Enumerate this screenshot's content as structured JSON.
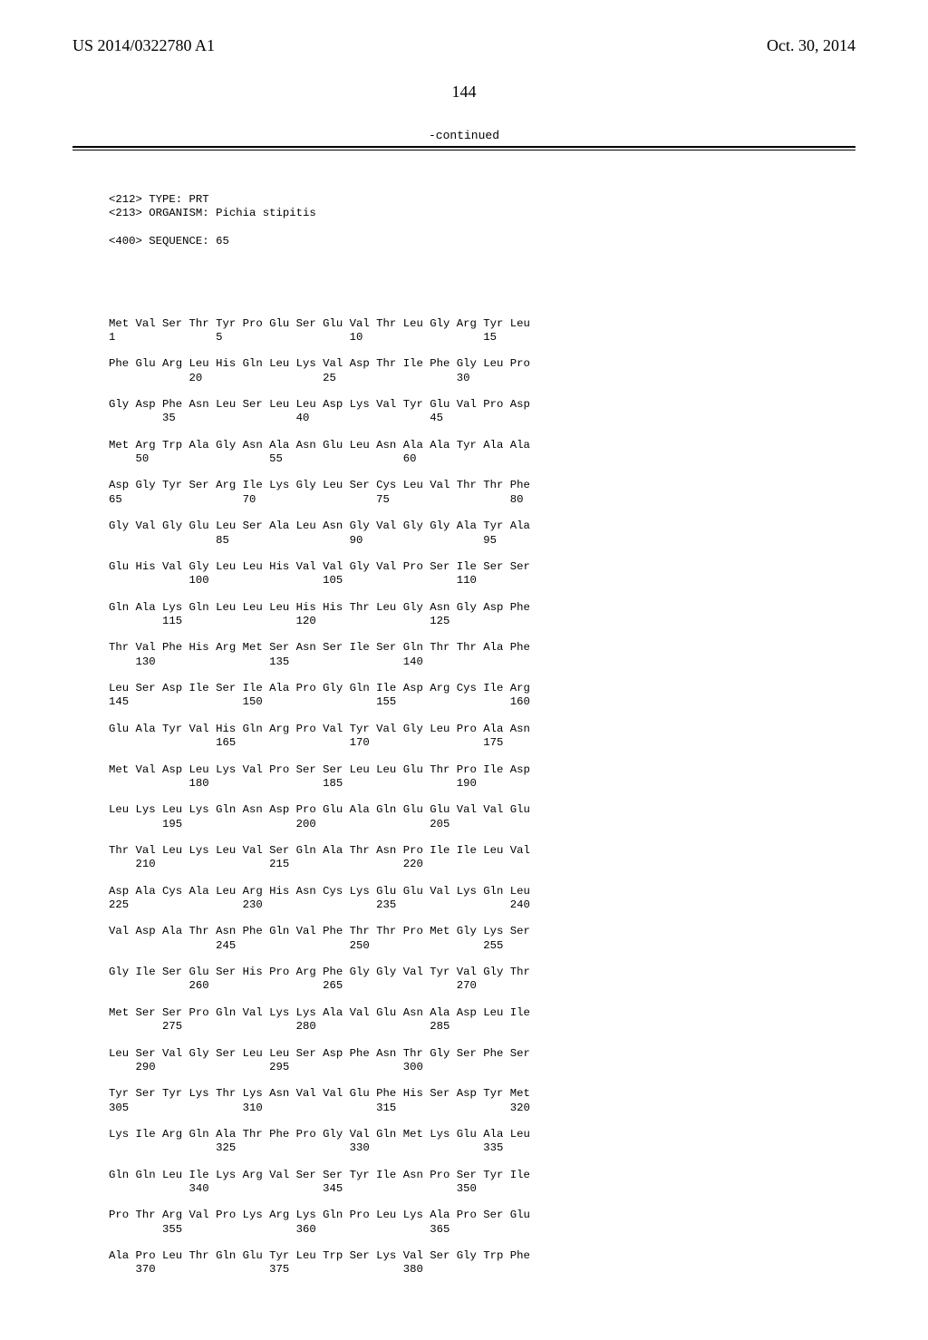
{
  "header": {
    "pub_number": "US 2014/0322780 A1",
    "pub_date": "Oct. 30, 2014"
  },
  "page_number": "144",
  "continued_label": "-continued",
  "meta_lines": [
    "<212> TYPE: PRT",
    "<213> ORGANISM: Pichia stipitis",
    "",
    "<400> SEQUENCE: 65"
  ],
  "sequence_rows": [
    {
      "aa": "Met Val Ser Thr Tyr Pro Glu Ser Glu Val Thr Leu Gly Arg Tyr Leu",
      "nm": "1               5                   10                  15"
    },
    {
      "aa": "Phe Glu Arg Leu His Gln Leu Lys Val Asp Thr Ile Phe Gly Leu Pro",
      "nm": "            20                  25                  30"
    },
    {
      "aa": "Gly Asp Phe Asn Leu Ser Leu Leu Asp Lys Val Tyr Glu Val Pro Asp",
      "nm": "        35                  40                  45"
    },
    {
      "aa": "Met Arg Trp Ala Gly Asn Ala Asn Glu Leu Asn Ala Ala Tyr Ala Ala",
      "nm": "    50                  55                  60"
    },
    {
      "aa": "Asp Gly Tyr Ser Arg Ile Lys Gly Leu Ser Cys Leu Val Thr Thr Phe",
      "nm": "65                  70                  75                  80"
    },
    {
      "aa": "Gly Val Gly Glu Leu Ser Ala Leu Asn Gly Val Gly Gly Ala Tyr Ala",
      "nm": "                85                  90                  95"
    },
    {
      "aa": "Glu His Val Gly Leu Leu His Val Val Gly Val Pro Ser Ile Ser Ser",
      "nm": "            100                 105                 110"
    },
    {
      "aa": "Gln Ala Lys Gln Leu Leu Leu His His Thr Leu Gly Asn Gly Asp Phe",
      "nm": "        115                 120                 125"
    },
    {
      "aa": "Thr Val Phe His Arg Met Ser Asn Ser Ile Ser Gln Thr Thr Ala Phe",
      "nm": "    130                 135                 140"
    },
    {
      "aa": "Leu Ser Asp Ile Ser Ile Ala Pro Gly Gln Ile Asp Arg Cys Ile Arg",
      "nm": "145                 150                 155                 160"
    },
    {
      "aa": "Glu Ala Tyr Val His Gln Arg Pro Val Tyr Val Gly Leu Pro Ala Asn",
      "nm": "                165                 170                 175"
    },
    {
      "aa": "Met Val Asp Leu Lys Val Pro Ser Ser Leu Leu Glu Thr Pro Ile Asp",
      "nm": "            180                 185                 190"
    },
    {
      "aa": "Leu Lys Leu Lys Gln Asn Asp Pro Glu Ala Gln Glu Glu Val Val Glu",
      "nm": "        195                 200                 205"
    },
    {
      "aa": "Thr Val Leu Lys Leu Val Ser Gln Ala Thr Asn Pro Ile Ile Leu Val",
      "nm": "    210                 215                 220"
    },
    {
      "aa": "Asp Ala Cys Ala Leu Arg His Asn Cys Lys Glu Glu Val Lys Gln Leu",
      "nm": "225                 230                 235                 240"
    },
    {
      "aa": "Val Asp Ala Thr Asn Phe Gln Val Phe Thr Thr Pro Met Gly Lys Ser",
      "nm": "                245                 250                 255"
    },
    {
      "aa": "Gly Ile Ser Glu Ser His Pro Arg Phe Gly Gly Val Tyr Val Gly Thr",
      "nm": "            260                 265                 270"
    },
    {
      "aa": "Met Ser Ser Pro Gln Val Lys Lys Ala Val Glu Asn Ala Asp Leu Ile",
      "nm": "        275                 280                 285"
    },
    {
      "aa": "Leu Ser Val Gly Ser Leu Leu Ser Asp Phe Asn Thr Gly Ser Phe Ser",
      "nm": "    290                 295                 300"
    },
    {
      "aa": "Tyr Ser Tyr Lys Thr Lys Asn Val Val Glu Phe His Ser Asp Tyr Met",
      "nm": "305                 310                 315                 320"
    },
    {
      "aa": "Lys Ile Arg Gln Ala Thr Phe Pro Gly Val Gln Met Lys Glu Ala Leu",
      "nm": "                325                 330                 335"
    },
    {
      "aa": "Gln Gln Leu Ile Lys Arg Val Ser Ser Tyr Ile Asn Pro Ser Tyr Ile",
      "nm": "            340                 345                 350"
    },
    {
      "aa": "Pro Thr Arg Val Pro Lys Arg Lys Gln Pro Leu Lys Ala Pro Ser Glu",
      "nm": "        355                 360                 365"
    },
    {
      "aa": "Ala Pro Leu Thr Gln Glu Tyr Leu Trp Ser Lys Val Ser Gly Trp Phe",
      "nm": "    370                 375                 380"
    }
  ],
  "colors": {
    "text": "#000000",
    "background": "#ffffff",
    "rule": "#000000"
  },
  "fonts": {
    "body_family": "Times New Roman",
    "mono_family": "Courier New",
    "header_size_pt": 14,
    "page_number_size_pt": 14,
    "mono_size_pt": 9
  }
}
